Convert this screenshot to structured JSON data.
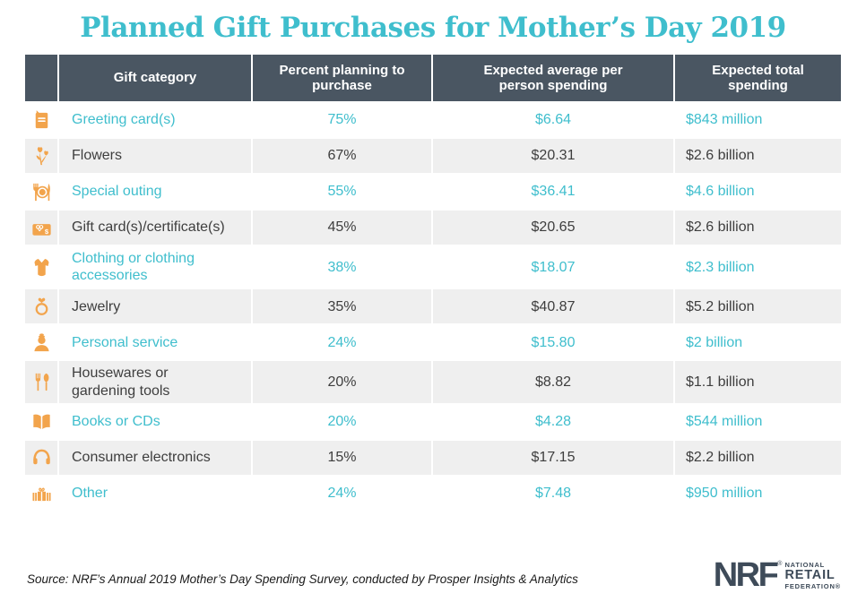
{
  "title": "Planned Gift Purchases for Mother’s Day 2019",
  "colors": {
    "teal": "#3FBECD",
    "orange": "#F2A44C",
    "header_bg": "#4A5662",
    "alt_row_bg": "#EFEFEF",
    "dark_text": "#3E3E3E",
    "logo_slate": "#3E4B59"
  },
  "table": {
    "headers": [
      "Gift category",
      "Percent planning to purchase",
      "Expected average per person spending",
      "Expected total spending"
    ],
    "rows": [
      {
        "icon": "greeting-card",
        "category": "Greeting card(s)",
        "percent": "75%",
        "avg": "$6.64",
        "total": "$843 million",
        "highlight": true
      },
      {
        "icon": "flowers",
        "category": "Flowers",
        "percent": "67%",
        "avg": "$20.31",
        "total": "$2.6 billion",
        "highlight": false
      },
      {
        "icon": "special-outing",
        "category": "Special outing",
        "percent": "55%",
        "avg": "$36.41",
        "total": "$4.6 billion",
        "highlight": true
      },
      {
        "icon": "gift-card",
        "category": "Gift card(s)/certificate(s)",
        "percent": "45%",
        "avg": "$20.65",
        "total": "$2.6 billion",
        "highlight": false
      },
      {
        "icon": "clothing",
        "category": "Clothing or clothing accessories",
        "percent": "38%",
        "avg": "$18.07",
        "total": "$2.3 billion",
        "highlight": true
      },
      {
        "icon": "jewelry",
        "category": "Jewelry",
        "percent": "35%",
        "avg": "$40.87",
        "total": "$5.2 billion",
        "highlight": false
      },
      {
        "icon": "personal-service",
        "category": "Personal service",
        "percent": "24%",
        "avg": "$15.80",
        "total": "$2 billion",
        "highlight": true
      },
      {
        "icon": "housewares",
        "category": "Housewares or gardening tools",
        "percent": "20%",
        "avg": "$8.82",
        "total": "$1.1 billion",
        "highlight": false
      },
      {
        "icon": "books",
        "category": "Books or CDs",
        "percent": "20%",
        "avg": "$4.28",
        "total": "$544 million",
        "highlight": true
      },
      {
        "icon": "electronics",
        "category": "Consumer electronics",
        "percent": "15%",
        "avg": "$17.15",
        "total": "$2.2 billion",
        "highlight": false
      },
      {
        "icon": "other-gifts",
        "category": "Other",
        "percent": "24%",
        "avg": "$7.48",
        "total": "$950 million",
        "highlight": true
      }
    ]
  },
  "footer": {
    "source": "Source: NRF’s Annual 2019 Mother’s Day Spending Survey, conducted by Prosper Insights & Analytics",
    "logo": {
      "abbr": "NRF",
      "reg": "®",
      "lines": [
        "NATIONAL",
        "RETAIL",
        "FEDERATION®"
      ]
    }
  },
  "chart_data": {
    "type": "table",
    "title": "Planned Gift Purchases for Mother’s Day 2019",
    "columns": [
      "Gift category",
      "Percent planning to purchase",
      "Expected average per person spending",
      "Expected total spending"
    ],
    "rows": [
      [
        "Greeting card(s)",
        "75%",
        "$6.64",
        "$843 million"
      ],
      [
        "Flowers",
        "67%",
        "$20.31",
        "$2.6 billion"
      ],
      [
        "Special outing",
        "55%",
        "$36.41",
        "$4.6 billion"
      ],
      [
        "Gift card(s)/certificate(s)",
        "45%",
        "$20.65",
        "$2.6 billion"
      ],
      [
        "Clothing or clothing accessories",
        "38%",
        "$18.07",
        "$2.3 billion"
      ],
      [
        "Jewelry",
        "35%",
        "$40.87",
        "$5.2 billion"
      ],
      [
        "Personal service",
        "24%",
        "$15.80",
        "$2 billion"
      ],
      [
        "Housewares or gardening tools",
        "20%",
        "$8.82",
        "$1.1 billion"
      ],
      [
        "Books or CDs",
        "20%",
        "$4.28",
        "$544 million"
      ],
      [
        "Consumer electronics",
        "15%",
        "$17.15",
        "$2.2 billion"
      ],
      [
        "Other",
        "24%",
        "$7.48",
        "$950 million"
      ]
    ],
    "percent_values": [
      75,
      67,
      55,
      45,
      38,
      35,
      24,
      20,
      20,
      15,
      24
    ],
    "avg_spending_usd": [
      6.64,
      20.31,
      36.41,
      20.65,
      18.07,
      40.87,
      15.8,
      8.82,
      4.28,
      17.15,
      7.48
    ],
    "source_note": "Source: NRF’s Annual 2019 Mother’s Day Spending Survey, conducted by Prosper Insights & Analytics"
  }
}
